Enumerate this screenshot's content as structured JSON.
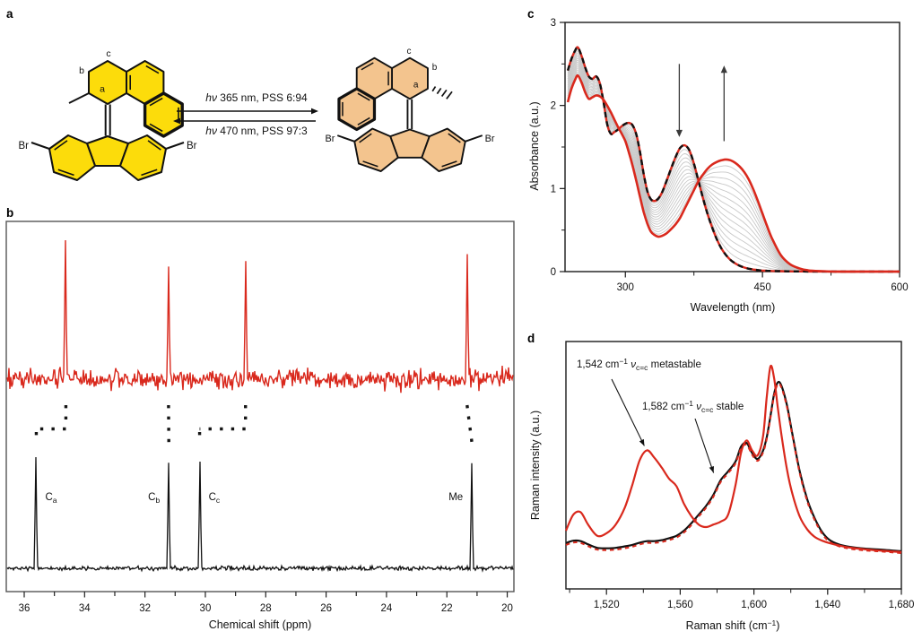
{
  "panel_labels": [
    "a",
    "b",
    "c",
    "d"
  ],
  "colors": {
    "red": "#d9291d",
    "ink": "#111111",
    "box_gray": "#555555",
    "gray_curve": "#c8c8c8",
    "yellow": "#fcdc0b",
    "orange": "#f3c48e",
    "arrow_gray": "#3a3a3a"
  },
  "panel_a": {
    "forward": {
      "hv": "hν",
      "rest": " 365 nm, PSS 6:94"
    },
    "backward": {
      "hv": "hν",
      "rest": " 470 nm, PSS 97:3"
    },
    "left_molecule": {
      "label_a": "a",
      "label_b": "b",
      "label_c": "c",
      "br_left": "Br",
      "br_right": "Br",
      "fill_key": "yellow"
    },
    "right_molecule": {
      "label_a": "a",
      "label_b": "b",
      "label_c": "c",
      "br_left": "Br",
      "br_right": "Br",
      "fill_key": "orange"
    }
  },
  "chart_data": [
    {
      "panel": "b",
      "type": "line",
      "xlabel": "Chemical shift (ppm)",
      "xlim": [
        36.6,
        19.8
      ],
      "xticks_major": [
        36,
        34,
        32,
        30,
        28,
        26,
        24,
        22,
        20
      ],
      "xticks_minor_step": 1,
      "series": [
        {
          "name": "metastable isomer (red, upper trace)",
          "color_key": "red",
          "peaks_ppm": [
            34.62,
            31.22,
            28.67,
            21.33
          ],
          "peak_rel_intensity": [
            1.0,
            0.81,
            0.85,
            0.9
          ]
        },
        {
          "name": "stable isomer (black, lower trace)",
          "color_key": "ink",
          "peaks": [
            {
              "ppm": 35.6,
              "label": "C",
              "sub": "a",
              "side": "right"
            },
            {
              "ppm": 31.21,
              "label": "C",
              "sub": "b",
              "side": "left"
            },
            {
              "ppm": 30.19,
              "label": "C",
              "sub": "c",
              "side": "right"
            },
            {
              "ppm": 21.17,
              "label": "Me",
              "sub": "",
              "side": "left"
            }
          ],
          "peak_rel_intensity": [
            1.0,
            0.95,
            0.96,
            0.945
          ]
        }
      ],
      "connectors": [
        {
          "from_ppm": 34.62,
          "to_ppm": 35.6
        },
        {
          "from_ppm": 31.22,
          "to_ppm": 31.21
        },
        {
          "from_ppm": 28.67,
          "to_ppm": 30.19
        },
        {
          "from_ppm": 21.33,
          "to_ppm": 21.17
        }
      ]
    },
    {
      "panel": "c",
      "type": "line",
      "xlabel": "Wavelength (nm)",
      "ylabel": "Absorbance (a.u.)",
      "xlim": [
        234,
        600
      ],
      "ylim": [
        0,
        3
      ],
      "xticks": [
        300,
        450,
        600
      ],
      "xticks_minor": [
        375,
        525
      ],
      "yticks": [
        0,
        1,
        2,
        3
      ],
      "yticks_minor": [
        0.5,
        1.5,
        2.5
      ],
      "x_nm": [
        237,
        241,
        245,
        248,
        252,
        256,
        260,
        264,
        268,
        272,
        276,
        280,
        284,
        288,
        292,
        296,
        300,
        304,
        308,
        312,
        316,
        320,
        324,
        328,
        332,
        336,
        340,
        345,
        350,
        355,
        360,
        365,
        370,
        375,
        380,
        385,
        390,
        395,
        400,
        405,
        410,
        415,
        420,
        425,
        430,
        435,
        440,
        445,
        450,
        455,
        460,
        470,
        480,
        490,
        500,
        515,
        530,
        560,
        600
      ],
      "series": [
        {
          "name": "stable isomer (black dashed over red)",
          "values": [
            2.42,
            2.56,
            2.66,
            2.7,
            2.6,
            2.46,
            2.35,
            2.32,
            2.35,
            2.27,
            2.05,
            1.78,
            1.66,
            1.68,
            1.71,
            1.75,
            1.78,
            1.79,
            1.76,
            1.65,
            1.44,
            1.18,
            0.97,
            0.87,
            0.85,
            0.88,
            0.95,
            1.09,
            1.24,
            1.38,
            1.49,
            1.52,
            1.46,
            1.3,
            1.09,
            0.88,
            0.69,
            0.53,
            0.39,
            0.28,
            0.2,
            0.14,
            0.1,
            0.07,
            0.05,
            0.035,
            0.025,
            0.018,
            0.012,
            0.01,
            0.008,
            0.005,
            0.003,
            0.002,
            0.001,
            0.001,
            0,
            0,
            0
          ]
        },
        {
          "name": "metastable isomer, PSS 365 nm (red)",
          "values": [
            2.04,
            2.2,
            2.31,
            2.36,
            2.28,
            2.16,
            2.08,
            2.1,
            2.12,
            2.11,
            2.07,
            2.0,
            1.92,
            1.83,
            1.74,
            1.66,
            1.57,
            1.43,
            1.27,
            1.09,
            0.9,
            0.72,
            0.58,
            0.48,
            0.44,
            0.42,
            0.43,
            0.46,
            0.51,
            0.57,
            0.65,
            0.76,
            0.87,
            0.98,
            1.09,
            1.17,
            1.24,
            1.29,
            1.32,
            1.34,
            1.35,
            1.34,
            1.31,
            1.265,
            1.2,
            1.11,
            0.99,
            0.85,
            0.7,
            0.55,
            0.41,
            0.2,
            0.09,
            0.04,
            0.015,
            0.005,
            0,
            0,
            0
          ]
        }
      ],
      "n_intermediates": 14,
      "arrows": [
        {
          "x_nm": 359,
          "y_from": 2.5,
          "y_to": 1.62,
          "dir": "down"
        },
        {
          "x_nm": 408,
          "y_from": 1.57,
          "y_to": 2.48,
          "dir": "up"
        }
      ]
    },
    {
      "panel": "d",
      "type": "line",
      "xlabel_parts": {
        "pre": "Raman shift (cm",
        "sup": "−1",
        "post": ")"
      },
      "ylabel": "Raman intensity (a.u.)",
      "xlim": [
        1498,
        1680
      ],
      "xticks": [
        1520,
        1560,
        1600,
        1640,
        1680
      ],
      "xtick_labels": [
        "1,520",
        "1,560",
        "1,600",
        "1,640",
        "1,680"
      ],
      "xticks_minor": [
        1500,
        1540,
        1580,
        1620,
        1660
      ],
      "x_cm": [
        1498,
        1502,
        1506,
        1510,
        1515,
        1520,
        1525,
        1530,
        1534,
        1538,
        1542,
        1546,
        1550,
        1554,
        1558,
        1562,
        1566,
        1570,
        1574,
        1578,
        1582,
        1586,
        1590,
        1593,
        1596,
        1599,
        1602,
        1605,
        1607,
        1609,
        1611,
        1613,
        1615,
        1618,
        1621,
        1625,
        1629,
        1633,
        1637,
        1641,
        1646,
        1652,
        1660,
        1670,
        1680
      ],
      "series": [
        {
          "name": "stable (black)",
          "values": [
            0.185,
            0.195,
            0.193,
            0.18,
            0.166,
            0.164,
            0.166,
            0.172,
            0.178,
            0.187,
            0.193,
            0.193,
            0.197,
            0.205,
            0.215,
            0.235,
            0.265,
            0.3,
            0.335,
            0.38,
            0.44,
            0.475,
            0.515,
            0.575,
            0.59,
            0.55,
            0.525,
            0.56,
            0.615,
            0.7,
            0.79,
            0.835,
            0.82,
            0.74,
            0.62,
            0.47,
            0.36,
            0.285,
            0.23,
            0.198,
            0.18,
            0.17,
            0.163,
            0.158,
            0.152
          ]
        },
        {
          "name": "metastable (red)",
          "values": [
            0.235,
            0.3,
            0.31,
            0.26,
            0.215,
            0.225,
            0.26,
            0.33,
            0.42,
            0.52,
            0.56,
            0.53,
            0.49,
            0.445,
            0.415,
            0.345,
            0.295,
            0.26,
            0.25,
            0.26,
            0.272,
            0.3,
            0.42,
            0.55,
            0.6,
            0.56,
            0.54,
            0.62,
            0.78,
            0.9,
            0.85,
            0.73,
            0.62,
            0.48,
            0.38,
            0.29,
            0.24,
            0.21,
            0.195,
            0.185,
            0.176,
            0.167,
            0.16,
            0.154,
            0.149
          ]
        },
        {
          "name": "after 470 nm irradiation (red dashed, overlaps stable)",
          "follows": 0
        }
      ],
      "annotations": [
        {
          "pre": "1,542 cm",
          "sup": "−1",
          "nu": " ν",
          "sub": "c=c",
          "post": " metastable",
          "target_cm": 1542,
          "target_frac": 0.56
        },
        {
          "pre": "1,582 cm",
          "sup": "−1",
          "nu": " ν",
          "sub": "c=c",
          "post": " stable",
          "target_cm": 1582,
          "target_frac": 0.44
        }
      ]
    }
  ]
}
